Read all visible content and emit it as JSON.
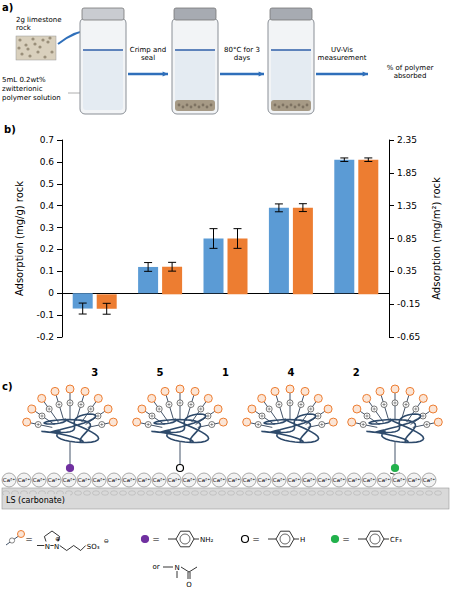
{
  "panels": {
    "a": {
      "label": "a)",
      "rock_label": "2g limestone rock",
      "solution_label": "5mL 0.2wt% zwitterionic polymer solution",
      "steps": [
        "Crimp and seal",
        "80°C for 3 days",
        "UV-Vis measurement"
      ],
      "result": "% of polymer absorbed"
    },
    "b": {
      "label": "b)"
    },
    "c": {
      "label": "c)",
      "ion": "Ca²⁺",
      "surface": "LS (carbonate)",
      "equals": "=",
      "or": "or",
      "zwitterion": {
        "n1": "N",
        "n2": "N",
        "plus": "⊕",
        "anion": "SO₃",
        "minus": "⊖"
      },
      "anchors": [
        {
          "fill": "#7030a0",
          "groups": [
            "NH₂",
            "N",
            "O"
          ]
        },
        {
          "fill": "none",
          "groups": [
            "H"
          ]
        },
        {
          "fill": "#22b14c",
          "groups": [
            "CF₃"
          ]
        }
      ]
    }
  },
  "chart_data": {
    "type": "bar",
    "categories": [
      "3",
      "5",
      "1",
      "4",
      "2"
    ],
    "ylabel": "Adsorption (mg/g) rock",
    "y2label": "Adsorption (mg/m²) rock",
    "ylim": [
      -0.2,
      0.7
    ],
    "yticks": [
      -0.2,
      -0.1,
      0,
      0.1,
      0.2,
      0.3,
      0.4,
      0.5,
      0.6,
      0.7
    ],
    "y2lim": [
      -0.65,
      2.35
    ],
    "y2ticks": [
      -0.65,
      -0.15,
      0.35,
      0.85,
      1.35,
      1.85,
      2.35
    ],
    "grid": false,
    "series": [
      {
        "color": "#5b9bd5",
        "values": [
          -0.07,
          0.12,
          0.25,
          0.39,
          0.61
        ],
        "errors": [
          0.025,
          0.02,
          0.045,
          0.018,
          0.008
        ]
      },
      {
        "color": "#ed7d31",
        "axis": "y2",
        "values": [
          -0.22,
          0.42,
          0.85,
          1.32,
          2.05
        ],
        "errors": [
          0.083,
          0.067,
          0.15,
          0.06,
          0.027
        ]
      }
    ]
  }
}
